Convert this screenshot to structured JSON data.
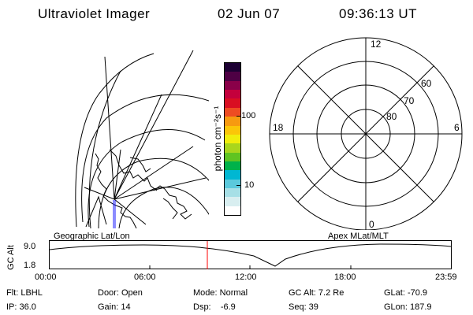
{
  "header": {
    "instrument": "Ultraviolet Imager",
    "date": "02 Jun 07",
    "time": "09:36:13 UT"
  },
  "left_map": {
    "caption": "Geographic Lat/Lon"
  },
  "right_dial": {
    "caption": "Apex MLat/MLT",
    "mlt_labels": {
      "top": "12",
      "left": "18",
      "right": "6",
      "bottom": "0"
    },
    "lat_labels": [
      "60",
      "70",
      "80"
    ]
  },
  "colorbar": {
    "unit_label": "photon cm⁻²s⁻¹",
    "ticks": [
      "100",
      "10"
    ],
    "colors": [
      "#ffffff",
      "#d8eef0",
      "#a6dfe6",
      "#5bc9dc",
      "#00b7d2",
      "#00b24a",
      "#5fc421",
      "#a9d61c",
      "#f0ee0c",
      "#fbc608",
      "#f79a10",
      "#ee4c22",
      "#d90e22",
      "#c4003c",
      "#8a0049",
      "#4e0044",
      "#1c0033"
    ]
  },
  "altitude": {
    "ylabel": "GC Alt",
    "y_ticks": [
      "9.0",
      "1.8"
    ],
    "x_ticks": [
      "00:00",
      "06:00",
      "12:00",
      "18:00",
      "23:59"
    ]
  },
  "status": {
    "flt": "Flt: LBHL",
    "ip": "IP: 36.0",
    "door": "Door: Open",
    "gain": "Gain: 14",
    "mode": "Mode: Normal",
    "dsp": "Dsp:    -6.9",
    "gcalt": "GC Alt: 7.2 Re",
    "seq": "Seq: 39",
    "glat": "GLat: -70.9",
    "glon": "GLon: 187.9"
  }
}
